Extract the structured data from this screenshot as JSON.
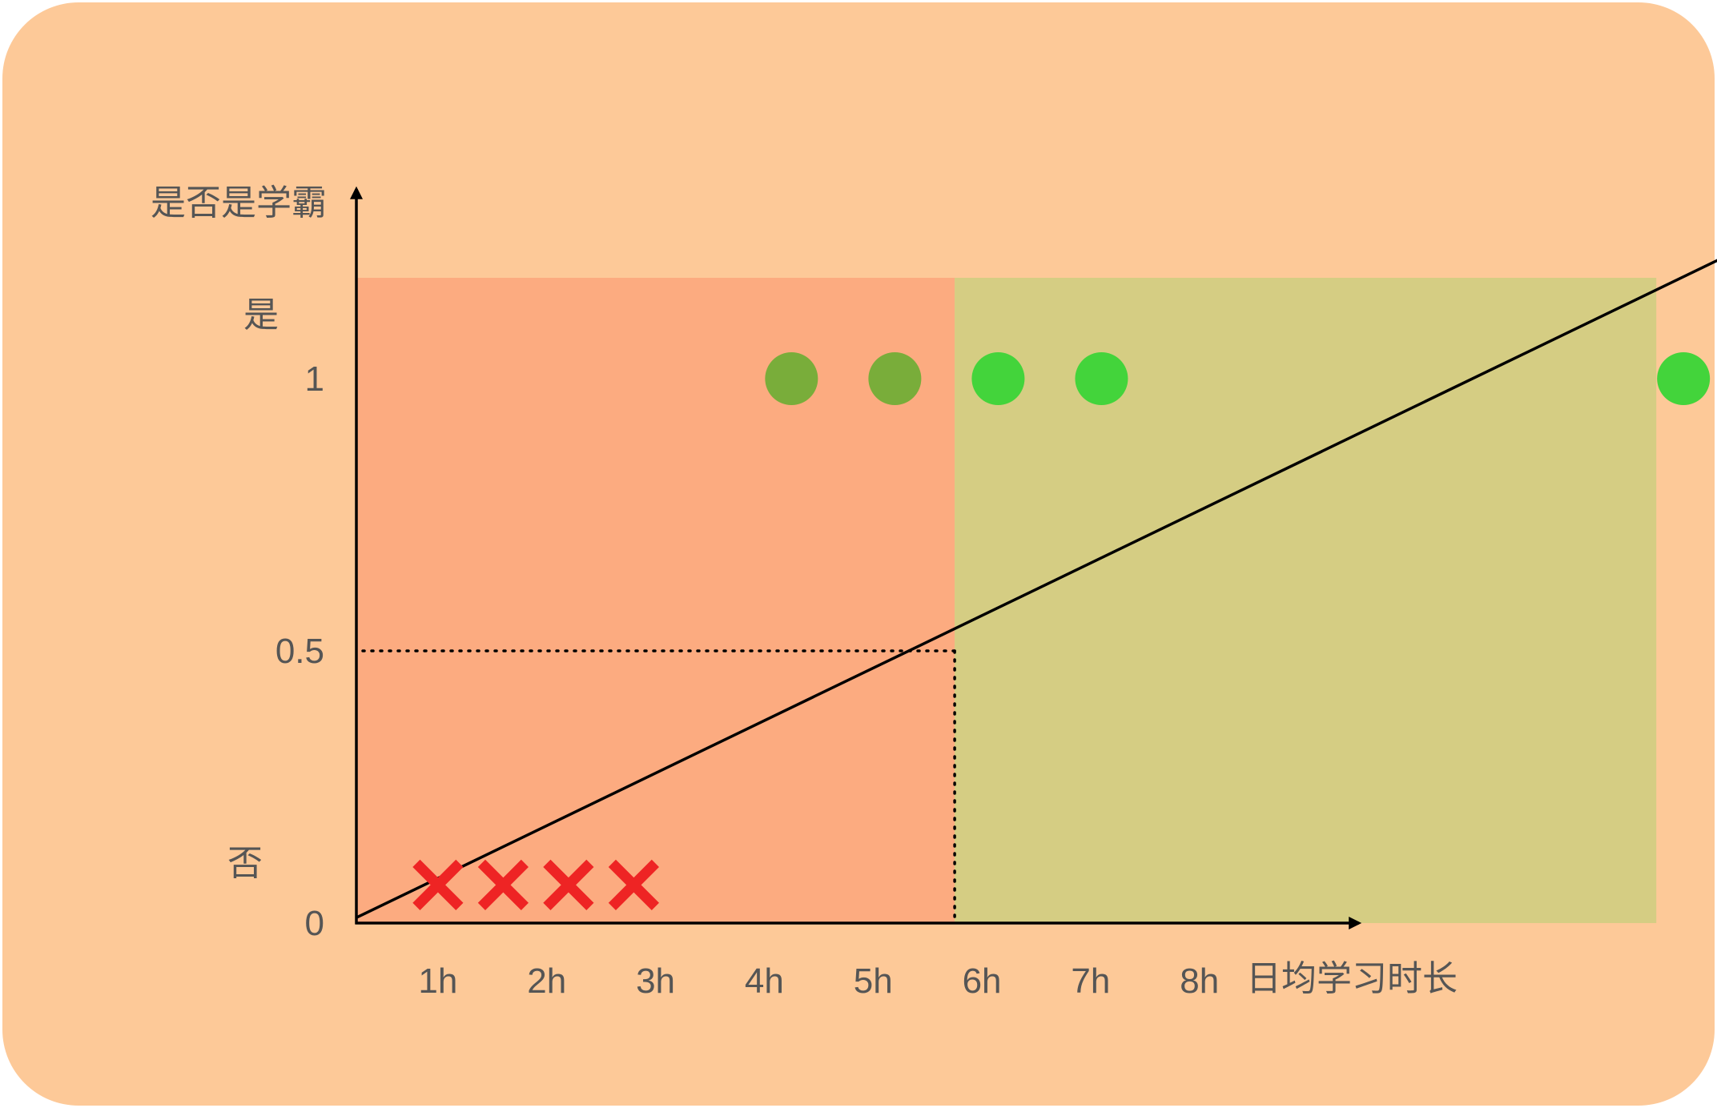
{
  "colors": {
    "panel_bg": "#FDC998",
    "no_region": "#FCAB80",
    "yes_region": "#D5CD83",
    "axis": "#000000",
    "text": "#555555",
    "cross": "#EE2424",
    "dot_dark": "#79AD3A",
    "dot_bright": "#43D43B"
  },
  "chart_data": {
    "type": "scatter",
    "x_ticks": [
      "1h",
      "2h",
      "3h",
      "4h",
      "5h",
      "6h",
      "7h",
      "8h"
    ],
    "xlabel": "日均学习时长",
    "ylabel": "是否是学霸",
    "y_ticks": [
      "0",
      "0.5",
      "1"
    ],
    "y_category_labels": {
      "no": "否",
      "yes": "是"
    },
    "xlim": [
      0.25,
      12.25
    ],
    "ylim": [
      0,
      1.35
    ],
    "threshold": {
      "x": 5.75,
      "y": 0.5
    },
    "regions": [
      {
        "name": "否",
        "x_range": [
          0.25,
          5.75
        ]
      },
      {
        "name": "是",
        "x_range": [
          5.75,
          12.2
        ]
      }
    ],
    "series": [
      {
        "marker": "cross",
        "color": "#EE2424",
        "points": [
          {
            "x": 1,
            "y": 0.07
          },
          {
            "x": 1.6,
            "y": 0.07
          },
          {
            "x": 2.2,
            "y": 0.07
          },
          {
            "x": 2.8,
            "y": 0.07
          }
        ]
      },
      {
        "marker": "circle",
        "color": "#79AD3A",
        "points": [
          {
            "x": 4.25,
            "y": 1
          },
          {
            "x": 5.2,
            "y": 1
          }
        ]
      },
      {
        "marker": "circle",
        "color": "#43D43B",
        "points": [
          {
            "x": 6.15,
            "y": 1
          },
          {
            "x": 7.1,
            "y": 1
          },
          {
            "x": 12.45,
            "y": 1
          }
        ]
      }
    ],
    "fit_line": {
      "from": {
        "x": 0.25,
        "y": 0.01
      },
      "to": {
        "x": 13.1,
        "y": 1.25
      }
    },
    "legend": "none",
    "grid": false
  }
}
